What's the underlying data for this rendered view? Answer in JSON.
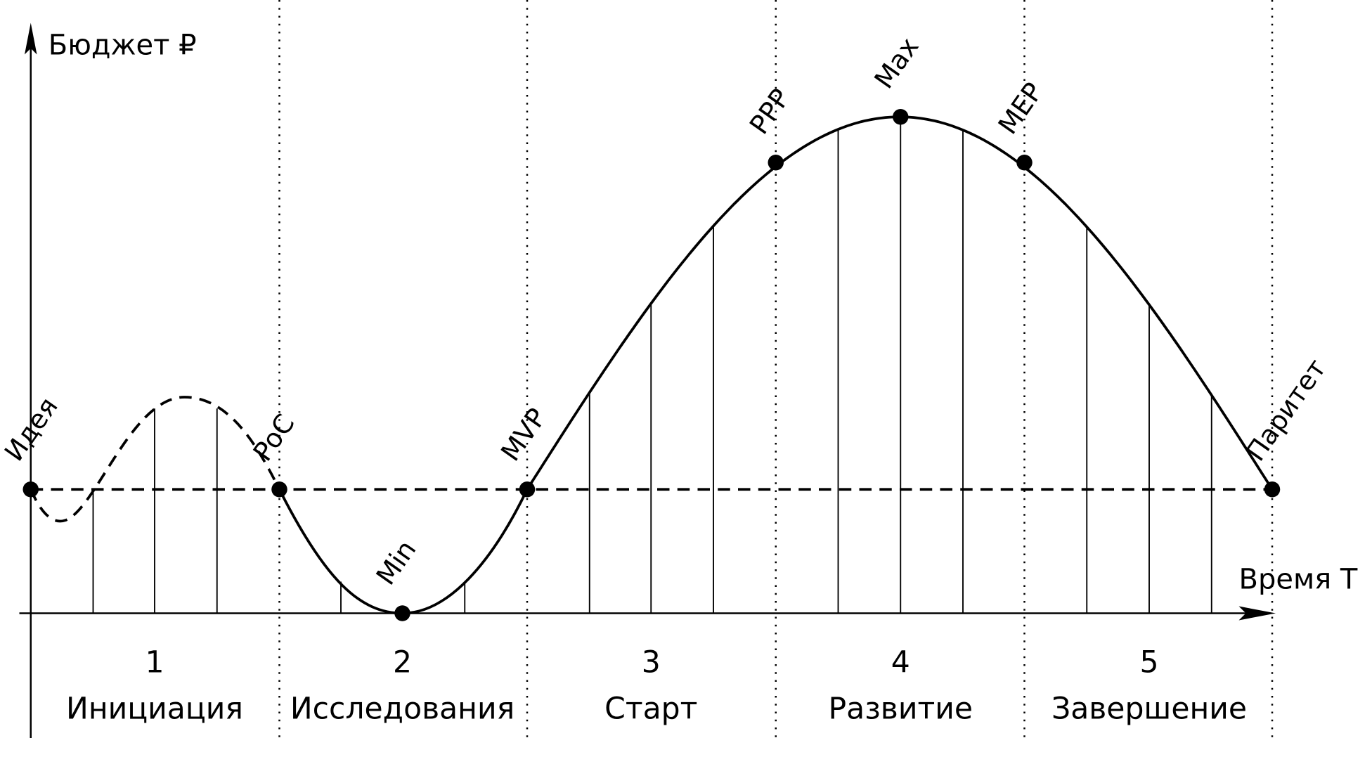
{
  "axes": {
    "y_label": "Бюджет ₽",
    "x_label": "Время T"
  },
  "points": [
    {
      "label": "Идея"
    },
    {
      "label": "PoC"
    },
    {
      "label": "Min"
    },
    {
      "label": "MVP"
    },
    {
      "label": "PPP"
    },
    {
      "label": "Max"
    },
    {
      "label": "MEP"
    },
    {
      "label": "Паритет"
    }
  ],
  "phases": [
    {
      "number": "1",
      "name": "Инициация"
    },
    {
      "number": "2",
      "name": "Исследования"
    },
    {
      "number": "3",
      "name": "Старт"
    },
    {
      "number": "4",
      "name": "Развитие"
    },
    {
      "number": "5",
      "name": "Завершение"
    }
  ]
}
